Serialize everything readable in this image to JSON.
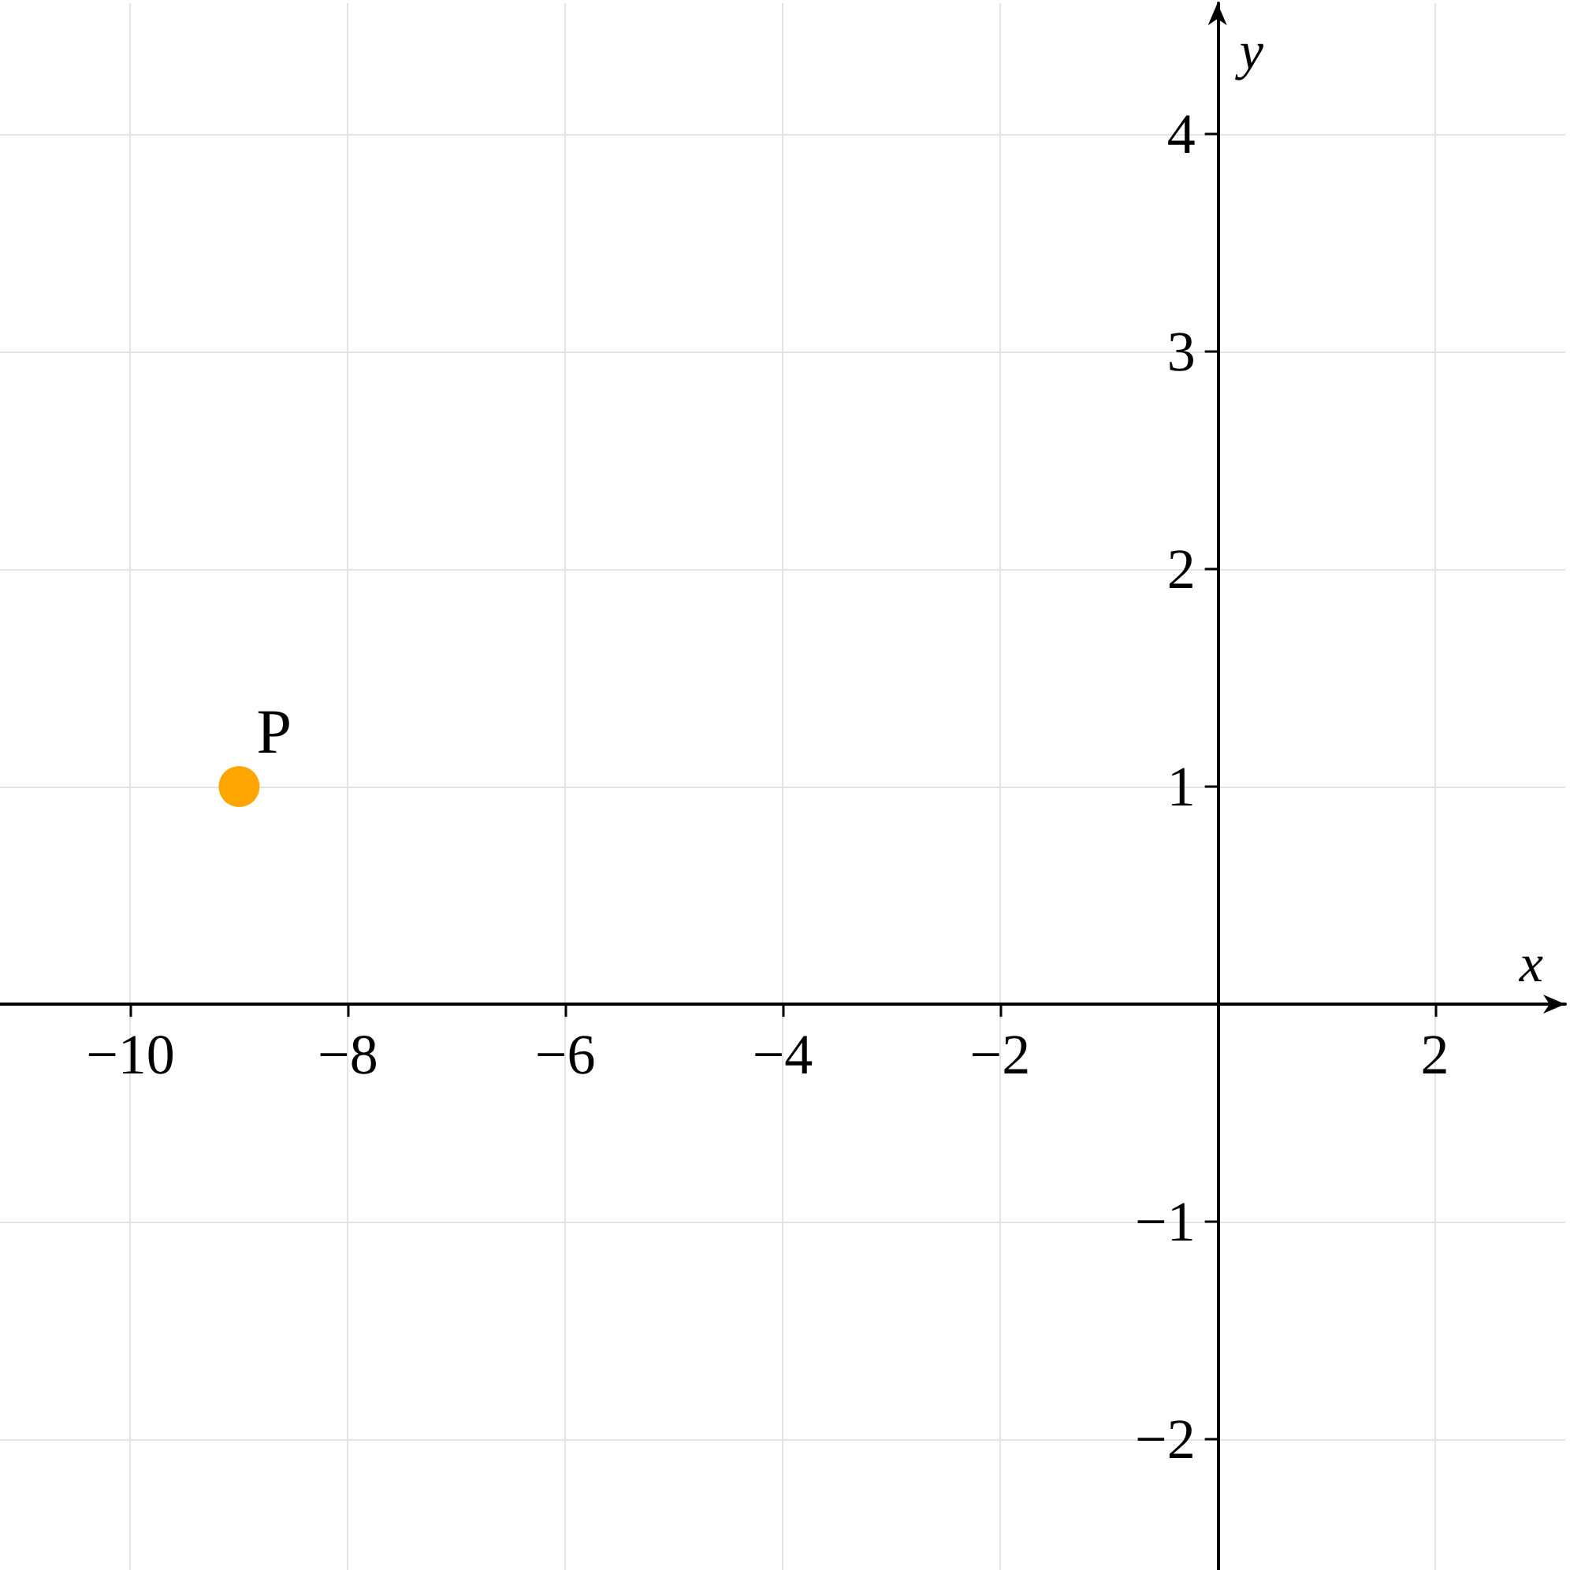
{
  "chart_data": {
    "type": "scatter",
    "xlabel": "x",
    "ylabel": "y",
    "xlim": [
      -11.2,
      3.2
    ],
    "ylim": [
      -2.6,
      4.6
    ],
    "xticks": [
      {
        "value": -10,
        "label": "−10"
      },
      {
        "value": -8,
        "label": "−8"
      },
      {
        "value": -6,
        "label": "−6"
      },
      {
        "value": -4,
        "label": "−4"
      },
      {
        "value": -2,
        "label": "−2"
      },
      2
    ],
    "yticks": [
      {
        "value": -2,
        "label": "−2"
      },
      {
        "value": -1,
        "label": "−1"
      },
      1,
      2,
      3,
      4
    ],
    "grid": true,
    "marker": "circle",
    "series": [
      {
        "name": "P",
        "color": "#ffa500",
        "x": [
          -9
        ],
        "values": [
          1
        ]
      }
    ]
  }
}
